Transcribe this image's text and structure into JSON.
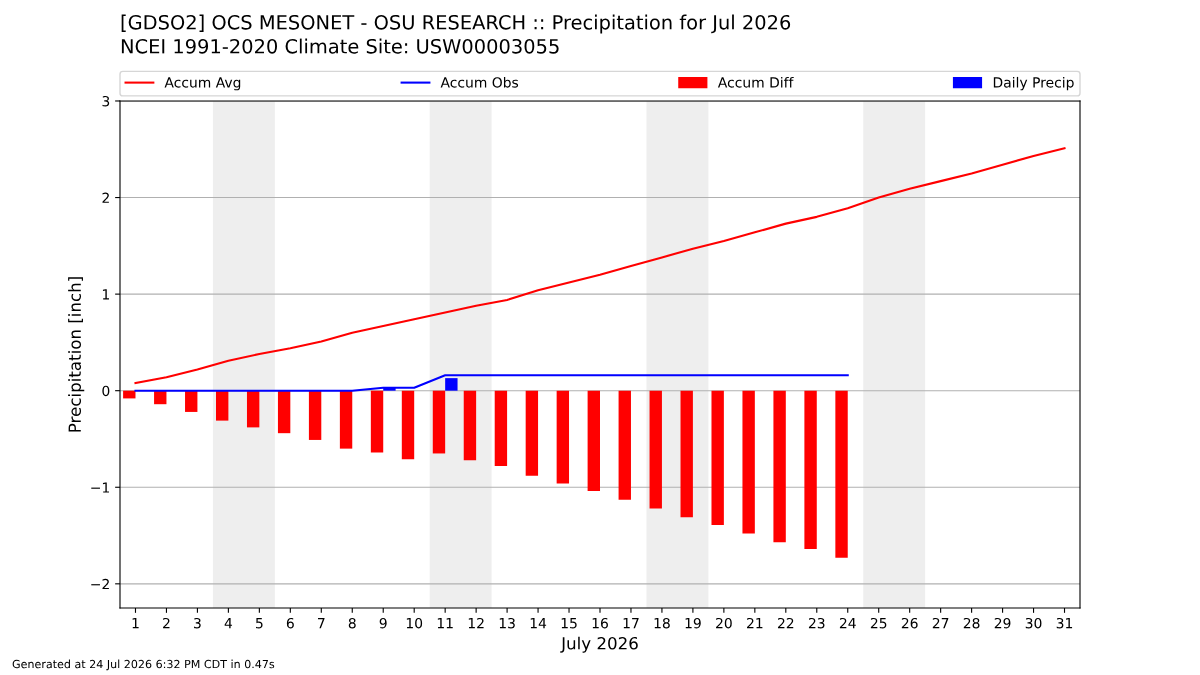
{
  "chart_data": {
    "type": "bar",
    "title": "[GDSO2] OCS MESONET - OSU RESEARCH :: Precipitation for Jul 2026",
    "subtitle": "NCEI 1991-2020 Climate Site: USW00003055",
    "xlabel": "July 2026",
    "ylabel": "Precipitation [inch]",
    "x": [
      1,
      2,
      3,
      4,
      5,
      6,
      7,
      8,
      9,
      10,
      11,
      12,
      13,
      14,
      15,
      16,
      17,
      18,
      19,
      20,
      21,
      22,
      23,
      24,
      25,
      26,
      27,
      28,
      29,
      30,
      31
    ],
    "series": [
      {
        "name": "Accum Avg",
        "type": "line",
        "color": "#ff0000",
        "values": [
          0.08,
          0.14,
          0.22,
          0.31,
          0.38,
          0.44,
          0.51,
          0.6,
          0.67,
          0.74,
          0.81,
          0.88,
          0.94,
          1.04,
          1.12,
          1.2,
          1.29,
          1.38,
          1.47,
          1.55,
          1.64,
          1.73,
          1.8,
          1.89,
          2.0,
          2.09,
          2.17,
          2.25,
          2.34,
          2.43,
          2.51
        ]
      },
      {
        "name": "Accum Obs",
        "type": "line",
        "color": "#0000ff",
        "x": [
          1,
          2,
          3,
          4,
          5,
          6,
          7,
          8,
          9,
          10,
          11,
          12,
          13,
          14,
          15,
          16,
          17,
          18,
          19,
          20,
          21,
          22,
          23,
          24
        ],
        "values": [
          0,
          0,
          0,
          0,
          0,
          0,
          0,
          0,
          0.03,
          0.03,
          0.16,
          0.16,
          0.16,
          0.16,
          0.16,
          0.16,
          0.16,
          0.16,
          0.16,
          0.16,
          0.16,
          0.16,
          0.16,
          0.16
        ]
      },
      {
        "name": "Accum Diff",
        "color": "#ff0000",
        "x": [
          1,
          2,
          3,
          4,
          5,
          6,
          7,
          8,
          9,
          10,
          11,
          12,
          13,
          14,
          15,
          16,
          17,
          18,
          19,
          20,
          21,
          22,
          23,
          24
        ],
        "values": [
          -0.08,
          -0.14,
          -0.22,
          -0.31,
          -0.38,
          -0.44,
          -0.51,
          -0.6,
          -0.64,
          -0.71,
          -0.65,
          -0.72,
          -0.78,
          -0.88,
          -0.96,
          -1.04,
          -1.13,
          -1.22,
          -1.31,
          -1.39,
          -1.48,
          -1.57,
          -1.64,
          -1.73
        ]
      },
      {
        "name": "Daily Precip",
        "color": "#0000ff",
        "x": [
          9,
          11
        ],
        "values": [
          0.03,
          0.13
        ]
      }
    ],
    "xlim": [
      0.5,
      31.5
    ],
    "xticks": [
      1,
      2,
      3,
      4,
      5,
      6,
      7,
      8,
      9,
      10,
      11,
      12,
      13,
      14,
      15,
      16,
      17,
      18,
      19,
      20,
      21,
      22,
      23,
      24,
      25,
      26,
      27,
      28,
      29,
      30,
      31
    ],
    "ylim": [
      -2.25,
      3
    ],
    "yticks": [
      {
        "value": -2,
        "label": "−2"
      },
      {
        "value": -1,
        "label": "−1"
      },
      0,
      1,
      2,
      3
    ],
    "bands": [
      {
        "axis": "x",
        "from": 3.5,
        "to": 5.5,
        "color": "#eeeeee"
      },
      {
        "axis": "x",
        "from": 10.5,
        "to": 12.5,
        "color": "#eeeeee"
      },
      {
        "axis": "x",
        "from": 17.5,
        "to": 19.5,
        "color": "#eeeeee"
      },
      {
        "axis": "x",
        "from": 24.5,
        "to": 26.5,
        "color": "#eeeeee"
      }
    ],
    "grid": "y",
    "legend": "top",
    "annotations": [
      "Generated at 24 Jul 2026 6:32 PM CDT in 0.47s"
    ]
  }
}
